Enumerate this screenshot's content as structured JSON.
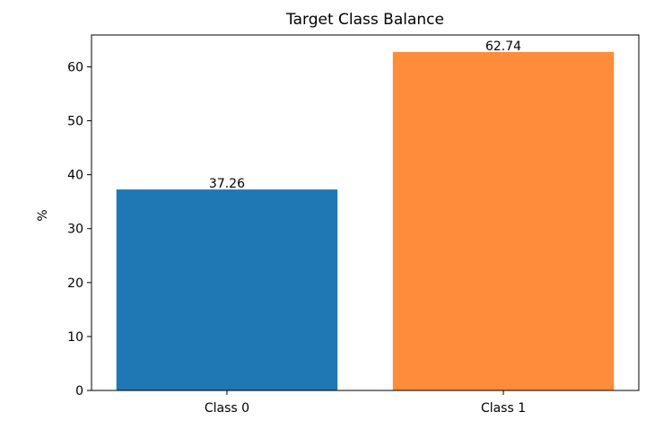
{
  "chart_data": {
    "type": "bar",
    "title": "Target Class Balance",
    "xlabel": "",
    "ylabel": "%",
    "categories": [
      "Class 0",
      "Class 1"
    ],
    "values": [
      37.26,
      62.74
    ],
    "data_labels": [
      "37.26",
      "62.74"
    ],
    "bar_colors": [
      "#1f77b4",
      "#ff8c3a"
    ],
    "ylim": [
      0,
      65.9
    ],
    "yticks": [
      0,
      10,
      20,
      30,
      40,
      50,
      60
    ],
    "ytick_labels": [
      "0",
      "10",
      "20",
      "30",
      "40",
      "50",
      "60"
    ],
    "grid": false,
    "legend": "none"
  }
}
